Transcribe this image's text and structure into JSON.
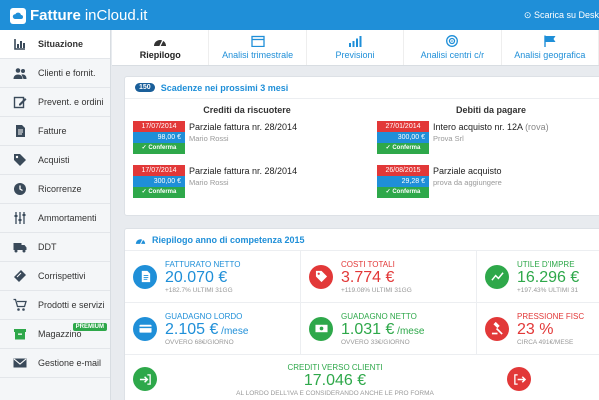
{
  "header": {
    "logo_bold": "Fatture",
    "logo_light": "inCloud.it",
    "download_label": "⊙ Scarica su Desk"
  },
  "sidebar": {
    "items": [
      {
        "label": "Situazione",
        "icon": "chart-icon",
        "active": true
      },
      {
        "label": "Clienti e fornit.",
        "icon": "users-icon"
      },
      {
        "label": "Prevent. e ordini",
        "icon": "edit-icon"
      },
      {
        "label": "Fatture",
        "icon": "document-icon"
      },
      {
        "label": "Acquisti",
        "icon": "tag-icon"
      },
      {
        "label": "Ricorrenze",
        "icon": "clock-icon"
      },
      {
        "label": "Ammortamenti",
        "icon": "sliders-icon"
      },
      {
        "label": "DDT",
        "icon": "truck-icon"
      },
      {
        "label": "Corrispettivi",
        "icon": "ticket-icon"
      },
      {
        "label": "Prodotti e servizi",
        "icon": "cart-icon"
      },
      {
        "label": "Magazzino",
        "icon": "box-icon",
        "badge": "PREMIUM"
      },
      {
        "label": "Gestione e-mail",
        "icon": "mail-icon"
      }
    ]
  },
  "tabs": [
    {
      "label": "Riepilogo",
      "icon": "gauge-icon",
      "active": true
    },
    {
      "label": "Analisi trimestrale",
      "icon": "calendar-icon"
    },
    {
      "label": "Previsioni",
      "icon": "bars-icon"
    },
    {
      "label": "Analisi centri c/r",
      "icon": "target-icon"
    },
    {
      "label": "Analisi geografica",
      "icon": "flag-icon"
    }
  ],
  "scadenze": {
    "count": "150",
    "title": "Scadenze nei prossimi 3 mesi",
    "crediti_title": "Crediti da riscuotere",
    "debiti_title": "Debiti da pagare",
    "crediti": [
      {
        "date": "17/07/2014",
        "amount": "98,00 €",
        "confirm": "✓ Conferma",
        "title": "Parziale fattura nr. 28/2014",
        "sub": "Mario Rossi"
      },
      {
        "date": "17/07/2014",
        "amount": "300,00 €",
        "confirm": "✓ Conferma",
        "title": "Parziale fattura nr. 28/2014",
        "sub": "Mario Rossi"
      }
    ],
    "debiti": [
      {
        "date": "27/01/2014",
        "amount": "300,00 €",
        "confirm": "✓ Conferma",
        "title": "Intero acquisto nr. 12A",
        "title_extra": " (rova)",
        "sub": "Prova Srl"
      },
      {
        "date": "26/08/2015",
        "amount": "29,28 €",
        "confirm": "✓ Conferma",
        "title": "Parziale acquisto",
        "title_extra": "",
        "sub": "prova da aggiungere"
      }
    ]
  },
  "riepilogo": {
    "title": "Riepilogo anno di competenza 2015",
    "stats": [
      {
        "label": "FATTURATO NETTO",
        "value": "20.070 €",
        "unit": "",
        "sub": "+182.7% ULTIMI 31GG",
        "color": "#1f8fd8",
        "icon": "document-icon"
      },
      {
        "label": "COSTI TOTALI",
        "value": "3.774 €",
        "unit": "",
        "sub": "+119.08% ULTIMI 31GG",
        "color": "#e23838",
        "icon": "tag-icon"
      },
      {
        "label": "UTILE D'IMPRE",
        "value": "16.296 €",
        "unit": "",
        "sub": "+197.43% ULTIMI 31",
        "color": "#2ea84a",
        "icon": "trend-icon"
      },
      {
        "label": "GUADAGNO LORDO",
        "value": "2.105 €",
        "unit": " /mese",
        "sub": "OVVERO 68€/GIORNO",
        "color": "#1f8fd8",
        "icon": "card-icon"
      },
      {
        "label": "GUADAGNO NETTO",
        "value": "1.031 €",
        "unit": " /mese",
        "sub": "OVVERO 33€/GIORNO",
        "color": "#2ea84a",
        "icon": "cash-icon"
      },
      {
        "label": "PRESSIONE FISC",
        "value": "23 %",
        "unit": "",
        "sub": "CIRCA 491€/MESE",
        "color": "#e23838",
        "icon": "gavel-icon"
      }
    ],
    "crediti_clienti": {
      "label": "CREDITI VERSO CLIENTI",
      "value": "17.046 €",
      "sub": "AL LORDO DELL'IVA E CONSIDERANDO ANCHE LE PRO FORMA"
    }
  }
}
